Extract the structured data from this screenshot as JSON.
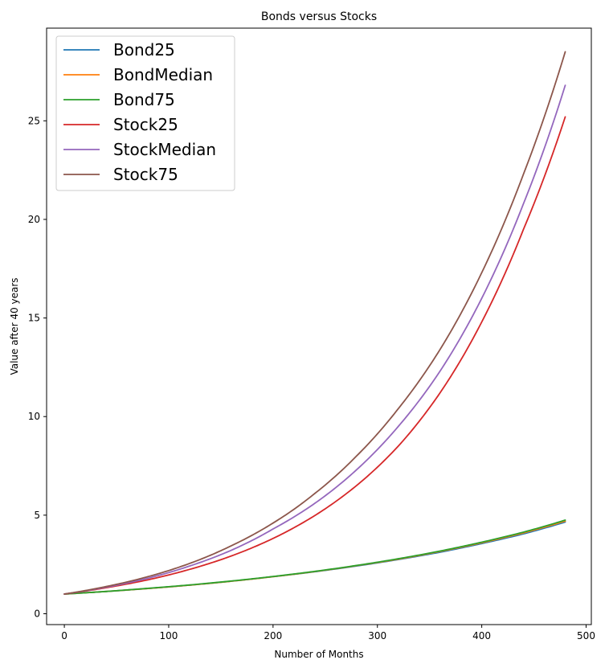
{
  "chart_data": {
    "type": "line",
    "title": "Bonds versus Stocks",
    "xlabel": "Number of Months",
    "ylabel": "Value after 40 years",
    "xlim": [
      -17,
      505
    ],
    "ylim": [
      -0.55,
      29.7
    ],
    "xticks": [
      0,
      100,
      200,
      300,
      400,
      500
    ],
    "yticks": [
      0,
      5,
      10,
      15,
      20,
      25
    ],
    "grid": false,
    "legend_position": "top-left",
    "x": [
      0,
      40,
      80,
      120,
      160,
      200,
      240,
      280,
      320,
      360,
      400,
      440,
      480
    ],
    "series": [
      {
        "name": "Bond25",
        "color": "#1f77b4",
        "values": [
          1.0,
          1.13,
          1.28,
          1.45,
          1.65,
          1.88,
          2.13,
          2.42,
          2.75,
          3.12,
          3.56,
          4.05,
          4.65
        ]
      },
      {
        "name": "BondMedian",
        "color": "#ff7f0e",
        "values": [
          1.0,
          1.13,
          1.28,
          1.45,
          1.65,
          1.88,
          2.14,
          2.44,
          2.77,
          3.16,
          3.6,
          4.1,
          4.7
        ]
      },
      {
        "name": "Bond75",
        "color": "#2ca02c",
        "values": [
          1.0,
          1.13,
          1.29,
          1.46,
          1.66,
          1.89,
          2.15,
          2.45,
          2.79,
          3.18,
          3.63,
          4.14,
          4.75
        ]
      },
      {
        "name": "Stock25",
        "color": "#d62728",
        "values": [
          1.0,
          1.32,
          1.72,
          2.25,
          2.93,
          3.82,
          4.98,
          6.5,
          8.5,
          11.2,
          14.8,
          19.5,
          25.2
        ]
      },
      {
        "name": "StockMedian",
        "color": "#9467bd",
        "values": [
          1.0,
          1.35,
          1.8,
          2.42,
          3.22,
          4.3,
          5.6,
          7.3,
          9.5,
          12.3,
          16.0,
          20.8,
          26.8
        ]
      },
      {
        "name": "Stock75",
        "color": "#8c564b",
        "values": [
          1.0,
          1.38,
          1.88,
          2.55,
          3.45,
          4.6,
          6.1,
          8.0,
          10.4,
          13.4,
          17.3,
          22.3,
          28.5
        ]
      }
    ]
  }
}
